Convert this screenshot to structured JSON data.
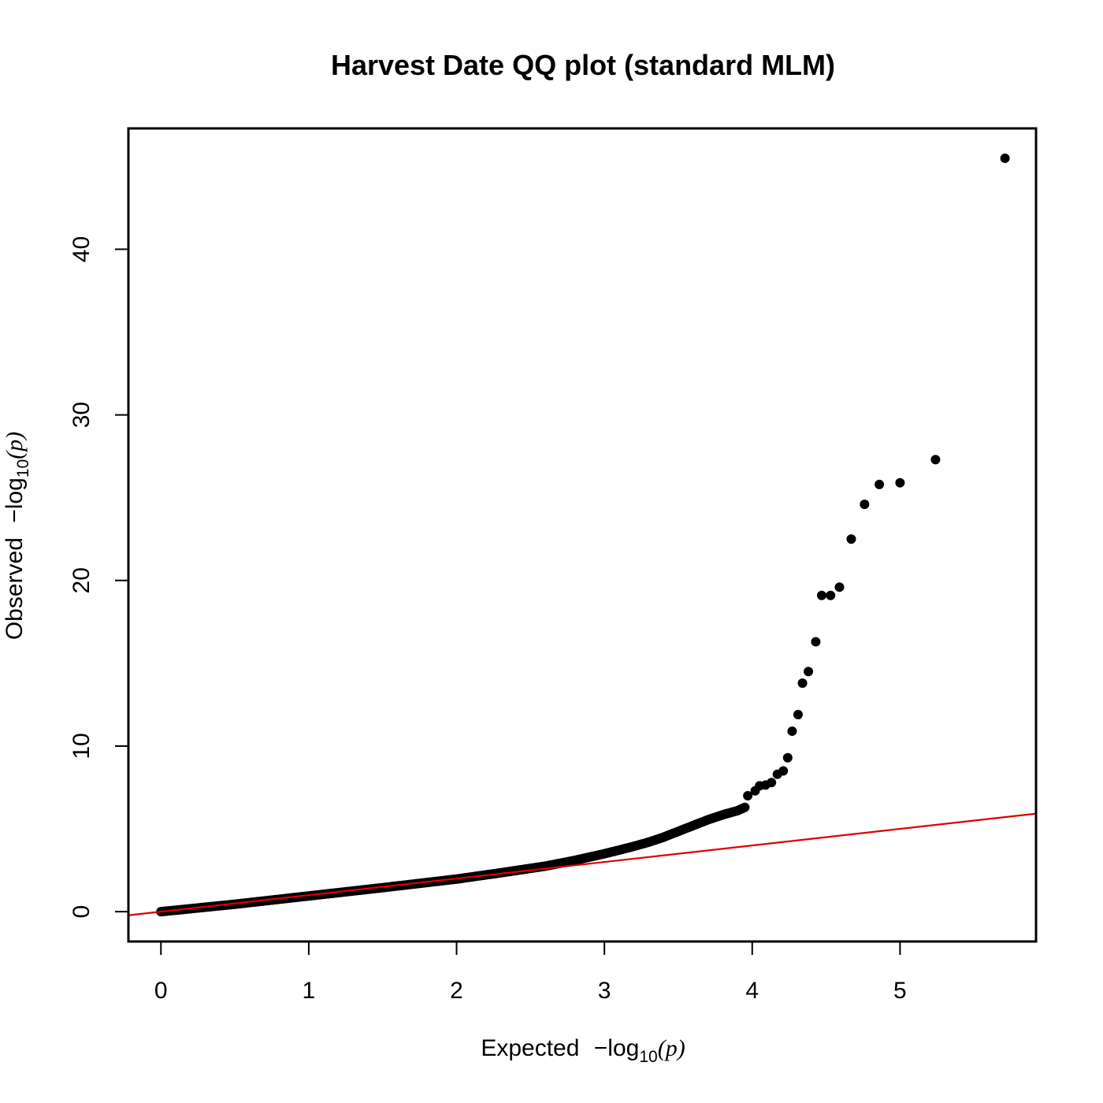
{
  "chart_data": {
    "type": "scatter",
    "title": "Harvest Date QQ plot (standard MLM)",
    "xlabel": {
      "prefix": "Expected",
      "minus": "−",
      "log": "log",
      "sub": "10",
      "open": "(",
      "var": "p",
      "close": ")"
    },
    "ylabel": {
      "prefix": "Observed",
      "minus": "−",
      "log": "log",
      "sub": "10",
      "open": "(",
      "var": "p",
      "close": ")"
    },
    "xlim": [
      -0.22,
      5.92
    ],
    "ylim": [
      -1.8,
      47.3
    ],
    "xticks": [
      0,
      1,
      2,
      3,
      4,
      5
    ],
    "yticks": [
      0,
      10,
      20,
      30,
      40
    ],
    "grid": false,
    "legend": "none",
    "point_color": "#000000",
    "reference_line": {
      "intercept": 0,
      "slope": 1,
      "color": "#dd0000"
    },
    "dense_curve": {
      "x": [
        0,
        0.5,
        1.0,
        1.5,
        2.0,
        2.3,
        2.6,
        2.8,
        3.0,
        3.1,
        3.2,
        3.3,
        3.4,
        3.5,
        3.6,
        3.7,
        3.8,
        3.9,
        3.95
      ],
      "y": [
        0,
        0.45,
        0.95,
        1.45,
        1.97,
        2.35,
        2.75,
        3.1,
        3.5,
        3.72,
        3.95,
        4.2,
        4.5,
        4.85,
        5.2,
        5.55,
        5.85,
        6.1,
        6.3
      ]
    },
    "points": [
      {
        "x": 3.97,
        "y": 7.0
      },
      {
        "x": 4.02,
        "y": 7.3
      },
      {
        "x": 4.05,
        "y": 7.6
      },
      {
        "x": 4.09,
        "y": 7.65
      },
      {
        "x": 4.13,
        "y": 7.8
      },
      {
        "x": 4.17,
        "y": 8.3
      },
      {
        "x": 4.21,
        "y": 8.5
      },
      {
        "x": 4.24,
        "y": 9.3
      },
      {
        "x": 4.27,
        "y": 10.9
      },
      {
        "x": 4.31,
        "y": 11.9
      },
      {
        "x": 4.34,
        "y": 13.8
      },
      {
        "x": 4.38,
        "y": 14.5
      },
      {
        "x": 4.43,
        "y": 16.3
      },
      {
        "x": 4.47,
        "y": 19.1
      },
      {
        "x": 4.53,
        "y": 19.1
      },
      {
        "x": 4.59,
        "y": 19.6
      },
      {
        "x": 4.67,
        "y": 22.5
      },
      {
        "x": 4.76,
        "y": 24.6
      },
      {
        "x": 4.86,
        "y": 25.8
      },
      {
        "x": 5.0,
        "y": 25.9
      },
      {
        "x": 5.24,
        "y": 27.3
      },
      {
        "x": 5.71,
        "y": 45.5
      }
    ]
  }
}
